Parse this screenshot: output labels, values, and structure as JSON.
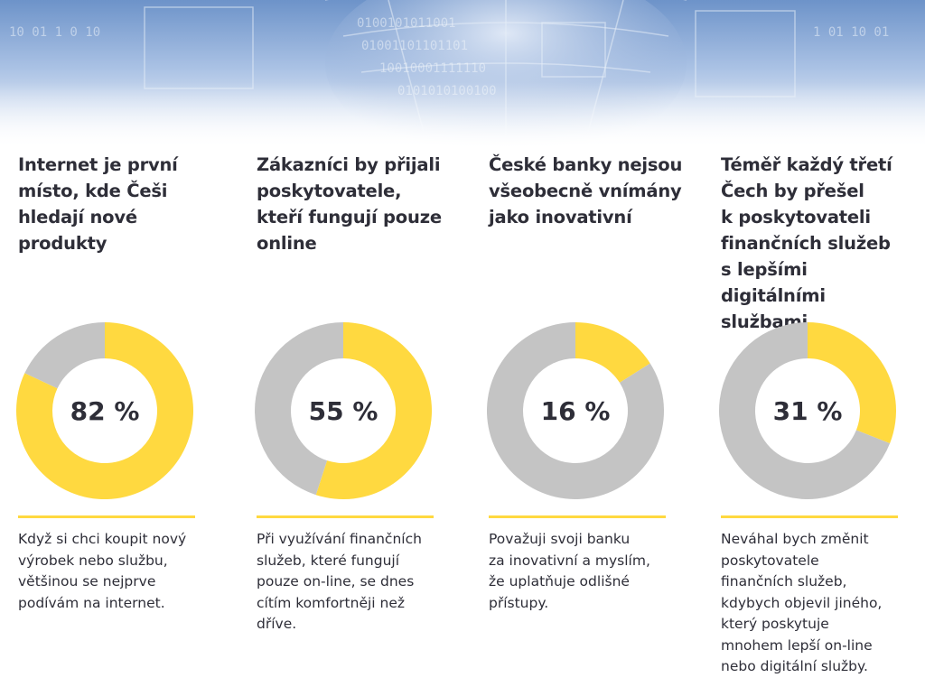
{
  "colors": {
    "accent": "#ffd940",
    "remainder": "#c4c4c4",
    "text": "#2e2e38"
  },
  "chart_data": [
    {
      "type": "pie",
      "title": "Internet je první\nmísto, kde Češi\nhledají nové\nprodukty",
      "values": [
        82,
        18
      ],
      "center_label": "82 %",
      "description": "Když si chci koupit nový\nvýrobek nebo službu,\nvětšinou se nejprve\npodívám na internet."
    },
    {
      "type": "pie",
      "title": "Zákazníci by přijali\nposkytovatele,\nkteří fungují pouze\nonline",
      "values": [
        55,
        45
      ],
      "center_label": "55 %",
      "description": "Při využívání finančních\nslužeb, které fungují\npouze on-line, se dnes\ncítím komfortněji než\ndříve."
    },
    {
      "type": "pie",
      "title": "České banky nejsou\nvšeobecně vnímány\njako inovativní",
      "values": [
        16,
        84
      ],
      "center_label": "16 %",
      "description": "Považuji svoji banku\nza inovativní a myslím,\nže uplatňuje odlišné\npřístupy."
    },
    {
      "type": "pie",
      "title": "Téměř každý třetí\nČech by přešel\nk poskytovateli\nfinančních služeb\ns lepšími digitálními\nslužbami",
      "values": [
        31,
        69
      ],
      "center_label": "31 %",
      "description": "Neváhal bych změnit\nposkytovatele\nfinančních služeb,\nkdybych objevil jiného,\nkterý poskytuje\nmnohem lepší on-line\nnebo digitální služby."
    }
  ]
}
